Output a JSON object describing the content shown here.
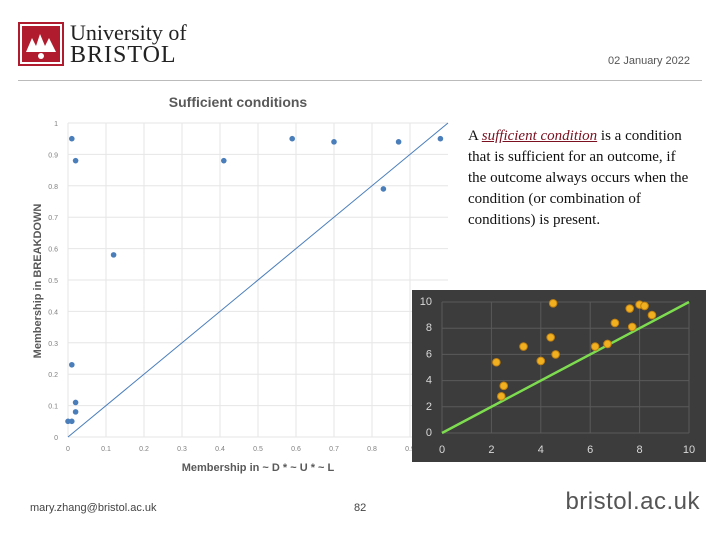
{
  "header": {
    "logo_line1": "University of",
    "logo_line2": "BRISTOL",
    "date": "02 January 2022"
  },
  "text": {
    "prefix": "A ",
    "emphasis": "sufficient condition",
    "body": " is a condition that is sufficient for an outcome, if the outcome always occurs when the condition (or combination of conditions) is present."
  },
  "footer": {
    "email": "mary.zhang@bristol.ac.uk",
    "page": "82",
    "brand": "bristol.ac.uk"
  },
  "colors": {
    "accent": "#b01c2e",
    "scatter": "#4a7ebb",
    "inset_bg": "#3c3c3c",
    "inset_point": "#f0b020",
    "inset_line": "#7ddc4f"
  },
  "chart_data": [
    {
      "type": "scatter",
      "title": "Sufficient conditions",
      "xlabel": "Membership in ~ D * ~ U * ~ L",
      "ylabel": "Membership in BREAKDOWN",
      "xlim": [
        0,
        1
      ],
      "ylim": [
        0,
        1
      ],
      "xticks": [
        "0",
        "0.1",
        "0.2",
        "0.3",
        "0.4",
        "0.5",
        "0.6",
        "0.7",
        "0.8",
        "0.9"
      ],
      "yticks": [
        "0",
        "0.1",
        "0.2",
        "0.3",
        "0.4",
        "0.5",
        "0.6",
        "0.7",
        "0.8",
        "0.9",
        "1"
      ],
      "grid": true,
      "diagonal": true,
      "points": [
        {
          "x": 0.0,
          "y": 0.05
        },
        {
          "x": 0.01,
          "y": 0.05
        },
        {
          "x": 0.01,
          "y": 0.95
        },
        {
          "x": 0.02,
          "y": 0.88
        },
        {
          "x": 0.01,
          "y": 0.23
        },
        {
          "x": 0.02,
          "y": 0.11
        },
        {
          "x": 0.02,
          "y": 0.08
        },
        {
          "x": 0.12,
          "y": 0.58
        },
        {
          "x": 0.41,
          "y": 0.88
        },
        {
          "x": 0.59,
          "y": 0.95
        },
        {
          "x": 0.7,
          "y": 0.94
        },
        {
          "x": 0.83,
          "y": 0.79
        },
        {
          "x": 0.87,
          "y": 0.94
        },
        {
          "x": 0.98,
          "y": 0.95
        }
      ]
    },
    {
      "type": "scatter",
      "xlim": [
        0,
        10
      ],
      "ylim": [
        0,
        10
      ],
      "xticks": [
        "0",
        "2",
        "4",
        "6",
        "8",
        "10"
      ],
      "yticks": [
        "0",
        "2",
        "4",
        "6",
        "8",
        "10"
      ],
      "grid": true,
      "diagonal": true,
      "points": [
        {
          "x": 2.2,
          "y": 5.4
        },
        {
          "x": 2.5,
          "y": 3.6
        },
        {
          "x": 2.4,
          "y": 2.8
        },
        {
          "x": 3.3,
          "y": 6.6
        },
        {
          "x": 4.0,
          "y": 5.5
        },
        {
          "x": 4.4,
          "y": 7.3
        },
        {
          "x": 4.5,
          "y": 9.9
        },
        {
          "x": 4.6,
          "y": 6.0
        },
        {
          "x": 6.2,
          "y": 6.6
        },
        {
          "x": 6.7,
          "y": 6.8
        },
        {
          "x": 7.0,
          "y": 8.4
        },
        {
          "x": 7.6,
          "y": 9.5
        },
        {
          "x": 7.7,
          "y": 8.1
        },
        {
          "x": 8.0,
          "y": 9.8
        },
        {
          "x": 8.2,
          "y": 9.7
        },
        {
          "x": 8.5,
          "y": 9.0
        }
      ]
    }
  ]
}
